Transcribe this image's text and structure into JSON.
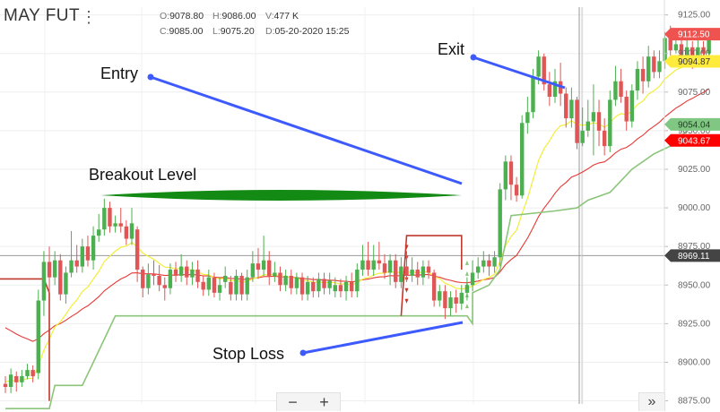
{
  "header": {
    "symbol": "MAY FUT",
    "menu_icon": "more-vertical-icon",
    "open_key": "O:",
    "open": "9078.80",
    "high_key": "H:",
    "high": "9086.00",
    "volume_key": "V:",
    "volume": "477 K",
    "close_key": "C:",
    "close": "9085.00",
    "low_key": "L:",
    "low": "9075.20",
    "date_key": "D:",
    "date": "05-20-2020 15:25"
  },
  "annotations": {
    "entry": "Entry",
    "exit": "Exit",
    "breakout": "Breakout Level",
    "stop_loss": "Stop Loss"
  },
  "toolbar": {
    "zoom_out": "−",
    "zoom_in": "+",
    "scroll_right": "»"
  },
  "chart_data": {
    "type": "candlestick",
    "y_ticks": [
      "9125.00",
      "9100.00",
      "9075.00",
      "9050.00",
      "9025.00",
      "9000.00",
      "8975.00",
      "8950.00",
      "8925.00",
      "8900.00",
      "8875.00"
    ],
    "ylim": [
      8873,
      9130
    ],
    "price_labels": [
      {
        "value": 9112.5,
        "text": "9112.50",
        "color": "#ef5350",
        "text_color": "#ffffff"
      },
      {
        "value": 9094.87,
        "text": "9094.87",
        "color": "#ffeb3b",
        "text_color": "#333333"
      },
      {
        "value": 9054.04,
        "text": "9054.04",
        "color": "#81c784",
        "text_color": "#1b3d1b"
      },
      {
        "value": 9043.67,
        "text": "9043.67",
        "color": "#ff0000",
        "text_color": "#ffffff"
      },
      {
        "value": 8969.11,
        "text": "8969.11",
        "color": "#444444",
        "text_color": "#ffffff"
      }
    ],
    "colors": {
      "up": "#4caf50",
      "down": "#e05555",
      "fast_ma": "#f2ee3a",
      "slow_ma": "#e53935",
      "trailing_stop": "#8bc57a",
      "upper_stop": "#c0392b",
      "arrow_line": "#3d5afe",
      "breakout_band": "#138a13"
    },
    "candles": [
      [
        8886,
        8884,
        8891,
        8880
      ],
      [
        8884,
        8892,
        8896,
        8880
      ],
      [
        8891,
        8887,
        8894,
        8881
      ],
      [
        8887,
        8891,
        8895,
        8884
      ],
      [
        8891,
        8895,
        8899,
        8889
      ],
      [
        8895,
        8891,
        8898,
        8887
      ],
      [
        8893,
        8940,
        8947,
        8889
      ],
      [
        8940,
        8965,
        8972,
        8930
      ],
      [
        8965,
        8955,
        8975,
        8945
      ],
      [
        8955,
        8966,
        8972,
        8950
      ],
      [
        8966,
        8944,
        8970,
        8940
      ],
      [
        8944,
        8958,
        8962,
        8938
      ],
      [
        8958,
        8966,
        8985,
        8955
      ],
      [
        8966,
        8962,
        8976,
        8958
      ],
      [
        8962,
        8975,
        8980,
        8958
      ],
      [
        8975,
        8966,
        8982,
        8962
      ],
      [
        8966,
        8982,
        8988,
        8960
      ],
      [
        8982,
        8986,
        8996,
        8978
      ],
      [
        8986,
        9000,
        9006,
        8982
      ],
      [
        9000,
        8988,
        9004,
        8984
      ],
      [
        8988,
        8990,
        8995,
        8984
      ],
      [
        8990,
        8988,
        9000,
        8984
      ],
      [
        8988,
        8980,
        8992,
        8976
      ],
      [
        8980,
        8990,
        9000,
        8976
      ],
      [
        8986,
        8960,
        8988,
        8952
      ],
      [
        8960,
        8948,
        8962,
        8942
      ],
      [
        8948,
        8957,
        8964,
        8944
      ],
      [
        8957,
        8956,
        8966,
        8950
      ],
      [
        8956,
        8950,
        8963,
        8946
      ],
      [
        8950,
        8948,
        8955,
        8940
      ],
      [
        8948,
        8960,
        8964,
        8944
      ],
      [
        8960,
        8956,
        8965,
        8952
      ],
      [
        8956,
        8962,
        8970,
        8952
      ],
      [
        8962,
        8955,
        8966,
        8950
      ],
      [
        8955,
        8960,
        8965,
        8950
      ],
      [
        8960,
        8952,
        8966,
        8948
      ],
      [
        8952,
        8947,
        8956,
        8943
      ],
      [
        8947,
        8955,
        8960,
        8943
      ],
      [
        8955,
        8945,
        8958,
        8942
      ],
      [
        8945,
        8950,
        8955,
        8940
      ],
      [
        8952,
        8956,
        8962,
        8948
      ],
      [
        8952,
        8944,
        8956,
        8940
      ],
      [
        8944,
        8956,
        8960,
        8940
      ],
      [
        8956,
        8944,
        8958,
        8940
      ],
      [
        8944,
        8955,
        8960,
        8940
      ],
      [
        8955,
        8964,
        8972,
        8952
      ],
      [
        8964,
        8960,
        8974,
        8954
      ],
      [
        8960,
        8966,
        8982,
        8956
      ],
      [
        8966,
        8956,
        8972,
        8950
      ],
      [
        8956,
        8958,
        8965,
        8952
      ],
      [
        8958,
        8950,
        8962,
        8946
      ],
      [
        8950,
        8956,
        8960,
        8946
      ],
      [
        8956,
        8948,
        8960,
        8944
      ],
      [
        8948,
        8955,
        8958,
        8944
      ],
      [
        8955,
        8944,
        8958,
        8940
      ],
      [
        8944,
        8952,
        8956,
        8940
      ],
      [
        8952,
        8946,
        8955,
        8942
      ],
      [
        8946,
        8954,
        8958,
        8942
      ],
      [
        8954,
        8948,
        8958,
        8944
      ],
      [
        8948,
        8953,
        8958,
        8944
      ],
      [
        8946,
        8950,
        8955,
        8942
      ],
      [
        8950,
        8946,
        8954,
        8942
      ],
      [
        8946,
        8952,
        8956,
        8940
      ],
      [
        8952,
        8946,
        8958,
        8942
      ],
      [
        8946,
        8960,
        8964,
        8942
      ],
      [
        8960,
        8966,
        8976,
        8956
      ],
      [
        8966,
        8960,
        8978,
        8956
      ],
      [
        8960,
        8966,
        8976,
        8956
      ],
      [
        8966,
        8964,
        8978,
        8960
      ],
      [
        8964,
        8958,
        8970,
        8954
      ],
      [
        8958,
        8966,
        8970,
        8950
      ],
      [
        8966,
        8952,
        8970,
        8948
      ],
      [
        8952,
        8962,
        8968,
        8948
      ],
      [
        8962,
        8956,
        8972,
        8952
      ],
      [
        8956,
        8960,
        8968,
        8952
      ],
      [
        8960,
        8955,
        8965,
        8950
      ],
      [
        8955,
        8962,
        8966,
        8950
      ],
      [
        8962,
        8958,
        8966,
        8954
      ],
      [
        8958,
        8940,
        8960,
        8936
      ],
      [
        8940,
        8946,
        8950,
        8936
      ],
      [
        8946,
        8935,
        8950,
        8928
      ],
      [
        8935,
        8942,
        8946,
        8930
      ],
      [
        8942,
        8938,
        8947,
        8932
      ],
      [
        8938,
        8945,
        8950,
        8934
      ],
      [
        8945,
        8950,
        8955,
        8940
      ],
      [
        8950,
        8958,
        8966,
        8946
      ],
      [
        8958,
        8962,
        8968,
        8954
      ],
      [
        8962,
        8966,
        8972,
        8958
      ],
      [
        8966,
        8962,
        8970,
        8956
      ],
      [
        8962,
        8968,
        8972,
        8958
      ],
      [
        8968,
        9012,
        9016,
        8962
      ],
      [
        9012,
        9030,
        9034,
        9005
      ],
      [
        9030,
        9015,
        9034,
        9005
      ],
      [
        9015,
        9008,
        9020,
        9004
      ],
      [
        9008,
        9055,
        9060,
        9006
      ],
      [
        9055,
        9062,
        9072,
        9048
      ],
      [
        9062,
        9085,
        9090,
        9058
      ],
      [
        9085,
        9098,
        9102,
        9080
      ],
      [
        9098,
        9080,
        9100,
        9076
      ],
      [
        9080,
        9072,
        9088,
        9066
      ],
      [
        9072,
        9082,
        9090,
        9068
      ],
      [
        9082,
        9074,
        9094,
        9066
      ],
      [
        9074,
        9058,
        9078,
        9052
      ],
      [
        9058,
        9070,
        9078,
        9052
      ],
      [
        9070,
        9042,
        9072,
        9038
      ],
      [
        9042,
        9050,
        9065,
        9040
      ],
      [
        9050,
        9056,
        9070,
        9046
      ],
      [
        9056,
        9062,
        9080,
        9034
      ],
      [
        9062,
        9050,
        9070,
        9040
      ],
      [
        9050,
        9040,
        9058,
        9034
      ],
      [
        9040,
        9070,
        9076,
        9036
      ],
      [
        9070,
        9082,
        9092,
        9066
      ],
      [
        9082,
        9072,
        9090,
        9068
      ],
      [
        9072,
        9056,
        9076,
        9050
      ],
      [
        9056,
        9076,
        9080,
        9052
      ],
      [
        9076,
        9090,
        9095,
        9070
      ],
      [
        9090,
        9082,
        9098,
        9074
      ],
      [
        9082,
        9098,
        9105,
        9078
      ],
      [
        9098,
        9088,
        9102,
        9084
      ],
      [
        9088,
        9095,
        9102,
        9084
      ],
      [
        9095,
        9110,
        9114,
        9090
      ],
      [
        9110,
        9102,
        9118,
        9098
      ],
      [
        9102,
        9106,
        9114,
        9100
      ],
      [
        9106,
        9098,
        9112,
        9094
      ],
      [
        9098,
        9104,
        9110,
        9094
      ],
      [
        9104,
        9096,
        9108,
        9090
      ],
      [
        9096,
        9104,
        9112,
        9092
      ],
      [
        9104,
        9100,
        9108,
        9096
      ],
      [
        9100,
        9112,
        9116,
        9096
      ]
    ],
    "trailing_stop": [
      8945,
      8948,
      8952,
      8960,
      8975,
      8990,
      9008,
      9020,
      9030,
      9040,
      9052,
      9054
    ]
  }
}
